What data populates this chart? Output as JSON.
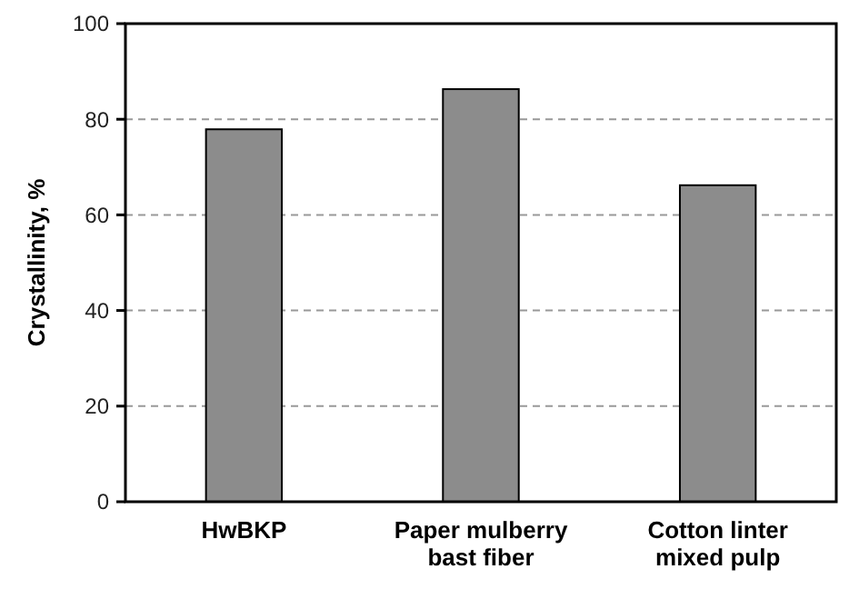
{
  "chart_data": {
    "type": "bar",
    "ylabel": "Crystallinity, %",
    "categories": [
      "HwBKP",
      "Paper mulberry\nbast fiber",
      "Cotton linter\nmixed pulp"
    ],
    "values": [
      77.9,
      86.3,
      66.2
    ],
    "color": "#8c8c8c",
    "ylim": [
      0,
      100
    ],
    "yticks": [
      0,
      20,
      40,
      60,
      80,
      100
    ],
    "grid": "y"
  }
}
